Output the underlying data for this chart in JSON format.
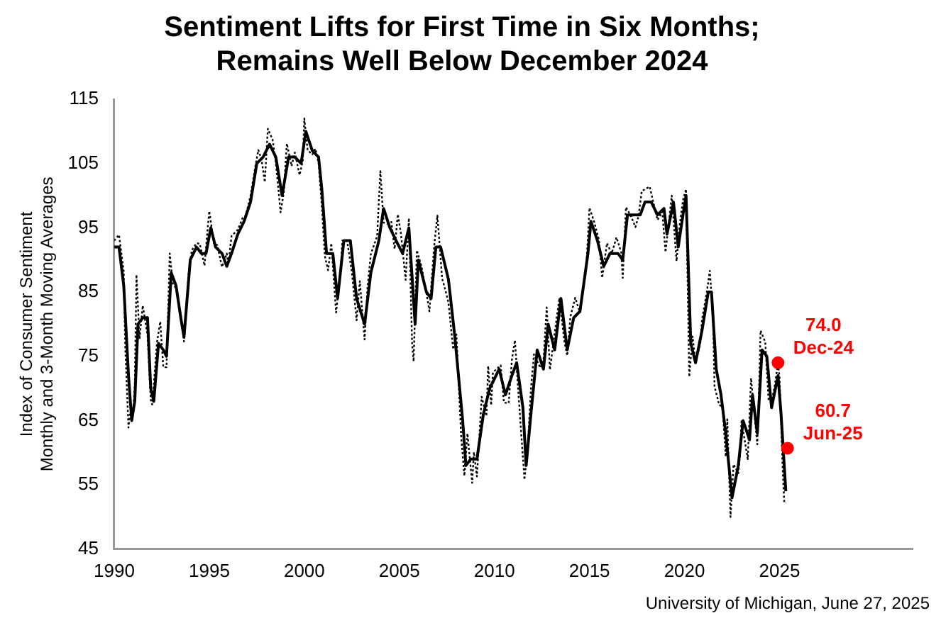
{
  "chart_data": {
    "type": "line",
    "title": [
      "Sentiment Lifts for First Time in Six Months;",
      "Remains Well Below December 2024"
    ],
    "ylabel": [
      "Index of Consumer Sentiment",
      "Monthly and 3-Month Moving Averages"
    ],
    "xlim": [
      1990,
      2032
    ],
    "xticks": [
      1990,
      1995,
      2000,
      2005,
      2010,
      2015,
      2020,
      2025
    ],
    "ylim": [
      45,
      115
    ],
    "yticks": [
      45,
      55,
      65,
      75,
      85,
      95,
      105,
      115
    ],
    "grid": false,
    "legend": false,
    "marker": "none",
    "series": [
      {
        "color": "#000000",
        "line_style": "dotted",
        "x": [
          1990.0,
          1990.25,
          1990.5,
          1990.58,
          1990.75,
          1990.83,
          1990.92,
          1991.0,
          1991.08,
          1991.17,
          1991.33,
          1991.5,
          1991.75,
          1991.92,
          1992.0,
          1992.25,
          1992.42,
          1992.58,
          1992.75,
          1992.92,
          1993.08,
          1993.25,
          1993.5,
          1993.67,
          1993.92,
          1994.08,
          1994.33,
          1994.5,
          1994.75,
          1994.92,
          1995.0,
          1995.25,
          1995.42,
          1995.67,
          1995.92,
          1996.0,
          1996.17,
          1996.5,
          1996.75,
          1996.92,
          1997.17,
          1997.42,
          1997.58,
          1997.75,
          1997.92,
          1998.08,
          1998.33,
          1998.5,
          1998.75,
          1998.92,
          1999.08,
          1999.33,
          1999.5,
          1999.75,
          1999.92,
          2000.0,
          2000.17,
          2000.42,
          2000.58,
          2000.75,
          2000.92,
          2001.08,
          2001.25,
          2001.42,
          2001.67,
          2001.92,
          2002.0,
          2002.25,
          2002.5,
          2002.75,
          2002.92,
          2003.17,
          2003.33,
          2003.5,
          2003.83,
          2004.0,
          2004.17,
          2004.42,
          2004.58,
          2004.75,
          2004.92,
          2005.08,
          2005.33,
          2005.5,
          2005.67,
          2005.75,
          2005.92,
          2006.17,
          2006.42,
          2006.58,
          2006.83,
          2007.0,
          2007.25,
          2007.42,
          2007.58,
          2007.83,
          2008.0,
          2008.25,
          2008.42,
          2008.58,
          2008.83,
          2008.92,
          2009.08,
          2009.33,
          2009.58,
          2009.67,
          2009.83,
          2009.92,
          2010.33,
          2010.5,
          2010.75,
          2010.92,
          2011.08,
          2011.25,
          2011.58,
          2011.75,
          2011.92,
          2012.08,
          2012.42,
          2012.58,
          2012.75,
          2012.92,
          2013.17,
          2013.42,
          2013.67,
          2013.83,
          2014.0,
          2014.25,
          2014.5,
          2014.83,
          2014.92,
          2015.0,
          2015.25,
          2015.5,
          2015.67,
          2015.92,
          2016.17,
          2016.42,
          2016.67,
          2016.75,
          2016.92,
          2017.17,
          2017.42,
          2017.58,
          2017.75,
          2018.17,
          2018.42,
          2018.58,
          2018.83,
          2019.0,
          2019.33,
          2019.58,
          2019.75,
          2019.92,
          2020.08,
          2020.25,
          2020.42,
          2020.58,
          2020.83,
          2020.92,
          2021.17,
          2021.33,
          2021.5,
          2021.58,
          2021.83,
          2022.0,
          2022.17,
          2022.25,
          2022.42,
          2022.58,
          2022.83,
          2022.92,
          2023.0,
          2023.33,
          2023.5,
          2023.75,
          2023.83,
          2023.92,
          2024.0,
          2024.25,
          2024.42,
          2024.58,
          2024.75,
          2024.92,
          2025.0,
          2025.17,
          2025.25,
          2025.33
        ],
        "values": [
          93.0,
          93.9,
          88.2,
          76.4,
          63.9,
          66.0,
          65.5,
          66.8,
          70.4,
          87.7,
          77.7,
          82.9,
          78.3,
          68.2,
          67.5,
          77.2,
          80.4,
          73.3,
          73.3,
          91.0,
          86.3,
          85.6,
          81.5,
          77.3,
          88.2,
          91.5,
          92.6,
          92.5,
          89.1,
          95.1,
          97.6,
          92.5,
          92.3,
          88.9,
          91.0,
          89.3,
          93.7,
          94.7,
          96.5,
          96.9,
          100.0,
          104.5,
          107.1,
          105.6,
          102.1,
          110.4,
          108.7,
          105.2,
          97.4,
          100.5,
          108.1,
          104.6,
          106.7,
          103.2,
          105.4,
          112.0,
          107.1,
          106.4,
          107.3,
          105.1,
          98.4,
          90.6,
          88.4,
          92.6,
          81.8,
          88.8,
          93.0,
          93.0,
          88.1,
          80.6,
          86.7,
          77.6,
          86.0,
          90.9,
          93.7,
          103.8,
          95.8,
          95.6,
          95.9,
          91.7,
          97.1,
          94.1,
          86.9,
          96.5,
          76.9,
          74.2,
          91.5,
          88.9,
          84.9,
          82.0,
          92.1,
          96.9,
          87.1,
          85.3,
          83.4,
          76.1,
          78.4,
          62.6,
          56.4,
          63.0,
          55.3,
          60.1,
          56.3,
          68.7,
          65.7,
          73.5,
          67.4,
          72.5,
          73.6,
          67.8,
          67.7,
          74.5,
          77.5,
          69.8,
          55.8,
          60.8,
          69.9,
          75.3,
          73.2,
          74.3,
          82.6,
          72.9,
          78.6,
          84.1,
          77.5,
          75.1,
          81.2,
          84.1,
          81.8,
          88.8,
          93.6,
          98.1,
          95.9,
          93.1,
          87.2,
          92.6,
          91.0,
          93.5,
          91.2,
          87.2,
          98.2,
          96.9,
          95.1,
          96.8,
          100.7,
          101.4,
          98.2,
          96.2,
          97.5,
          91.2,
          100.0,
          89.8,
          95.5,
          99.3,
          101.0,
          71.8,
          78.1,
          74.1,
          76.9,
          80.7,
          84.9,
          88.3,
          81.2,
          70.3,
          67.4,
          67.2,
          59.4,
          65.2,
          50.0,
          58.2,
          56.8,
          59.7,
          64.9,
          59.0,
          71.6,
          63.8,
          61.3,
          69.7,
          79.0,
          77.2,
          68.2,
          67.9,
          70.5,
          74.0,
          71.7,
          57.0,
          52.2,
          52.2
        ]
      },
      {
        "color": "#000000",
        "line_style": "solid",
        "x": [
          1990.0,
          1990.25,
          1990.5,
          1990.75,
          1990.92,
          1991.08,
          1991.25,
          1991.5,
          1991.75,
          1991.92,
          1992.08,
          1992.33,
          1992.58,
          1992.75,
          1993.0,
          1993.25,
          1993.5,
          1993.67,
          1994.0,
          1994.33,
          1994.58,
          1994.83,
          1995.08,
          1995.33,
          1995.67,
          1995.92,
          1996.17,
          1996.5,
          1996.83,
          1997.17,
          1997.5,
          1997.83,
          1998.17,
          1998.5,
          1998.83,
          1999.17,
          1999.5,
          1999.83,
          2000.08,
          2000.42,
          2000.75,
          2000.92,
          2001.17,
          2001.5,
          2001.75,
          2002.08,
          2002.42,
          2002.75,
          2003.17,
          2003.5,
          2003.92,
          2004.17,
          2004.5,
          2004.83,
          2005.17,
          2005.5,
          2005.83,
          2006.0,
          2006.42,
          2006.67,
          2006.92,
          2007.17,
          2007.58,
          2007.92,
          2008.33,
          2008.5,
          2008.75,
          2009.08,
          2009.42,
          2009.75,
          2010.25,
          2010.58,
          2010.92,
          2011.17,
          2011.5,
          2011.67,
          2011.92,
          2012.25,
          2012.58,
          2012.83,
          2013.17,
          2013.5,
          2013.83,
          2014.17,
          2014.5,
          2014.92,
          2015.08,
          2015.42,
          2015.75,
          2016.08,
          2016.5,
          2016.75,
          2017.0,
          2017.33,
          2017.67,
          2017.92,
          2018.25,
          2018.58,
          2018.92,
          2019.08,
          2019.42,
          2019.67,
          2019.92,
          2020.08,
          2020.33,
          2020.58,
          2020.92,
          2021.25,
          2021.42,
          2021.67,
          2021.92,
          2022.17,
          2022.5,
          2022.83,
          2023.08,
          2023.42,
          2023.58,
          2023.83,
          2024.08,
          2024.33,
          2024.58,
          2024.92,
          2025.08,
          2025.33
        ],
        "values": [
          92,
          92,
          86,
          72,
          65,
          68,
          80,
          81,
          81,
          70,
          68,
          77,
          76,
          75,
          88,
          86,
          81,
          78,
          90,
          92,
          91,
          91,
          95,
          92,
          91,
          89,
          91,
          94,
          96,
          99,
          105,
          106,
          108,
          106,
          100,
          106,
          106,
          105,
          110,
          107,
          106,
          101,
          91,
          91,
          84,
          93,
          93,
          84,
          80,
          88,
          93,
          98,
          95,
          93,
          91,
          95,
          80,
          90,
          85,
          84,
          92,
          92,
          87,
          78,
          65,
          58,
          59,
          59,
          66,
          70,
          73,
          69,
          72,
          74,
          67,
          58,
          66,
          76,
          73,
          80,
          76,
          84,
          76,
          81,
          82,
          91,
          96,
          93,
          89,
          91,
          91,
          90,
          97,
          97,
          97,
          99,
          99,
          97,
          98,
          94,
          99,
          92,
          97,
          100,
          77,
          74,
          79,
          85,
          85,
          73,
          69,
          63,
          53,
          58,
          65,
          62,
          69,
          63,
          76,
          75,
          67,
          72,
          66,
          54
        ]
      },
      {
        "type": "scatter",
        "color": "#ff0000",
        "marker": "circle",
        "x": [
          2024.92,
          2025.42
        ],
        "values": [
          74.0,
          60.7
        ]
      }
    ],
    "annotations": [
      {
        "text": "74.0\nDec-24",
        "x": 2024.92,
        "y": 74.0
      },
      {
        "text": "60.7\nJun-25",
        "x": 2025.42,
        "y": 60.7
      },
      "University of Michigan, June 27, 2025"
    ]
  }
}
